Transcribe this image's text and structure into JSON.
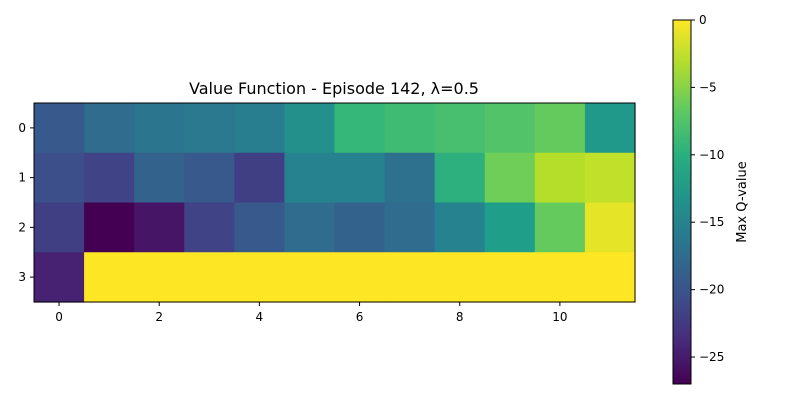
{
  "chart_data": {
    "type": "heatmap",
    "title": "Value Function - Episode 142, λ=0.5",
    "xlabel": "",
    "ylabel": "",
    "colorbar_label": "Max Q-value",
    "colormap": "viridis",
    "vmin": -27,
    "vmax": 0,
    "x_ticks": [
      0,
      2,
      4,
      6,
      8,
      10
    ],
    "y_ticks": [
      0,
      1,
      2,
      3
    ],
    "colorbar_ticks": [
      0,
      -5,
      -10,
      -15,
      -20,
      -25
    ],
    "rows": 4,
    "cols": 12,
    "values": [
      [
        -19.5,
        -17.5,
        -16.5,
        -16.0,
        -15.5,
        -13.5,
        -9.0,
        -8.5,
        -8.0,
        -7.5,
        -6.5,
        -12.5
      ],
      [
        -20.5,
        -21.5,
        -18.5,
        -19.5,
        -22.0,
        -15.0,
        -15.0,
        -17.0,
        -10.0,
        -6.0,
        -3.0,
        -2.5
      ],
      [
        -22.0,
        -27.0,
        -25.5,
        -21.5,
        -19.5,
        -17.5,
        -18.5,
        -17.5,
        -15.0,
        -12.0,
        -6.5,
        -1.0
      ],
      [
        -24.5,
        0,
        0,
        0,
        0,
        0,
        0,
        0,
        0,
        0,
        0,
        0
      ]
    ]
  }
}
